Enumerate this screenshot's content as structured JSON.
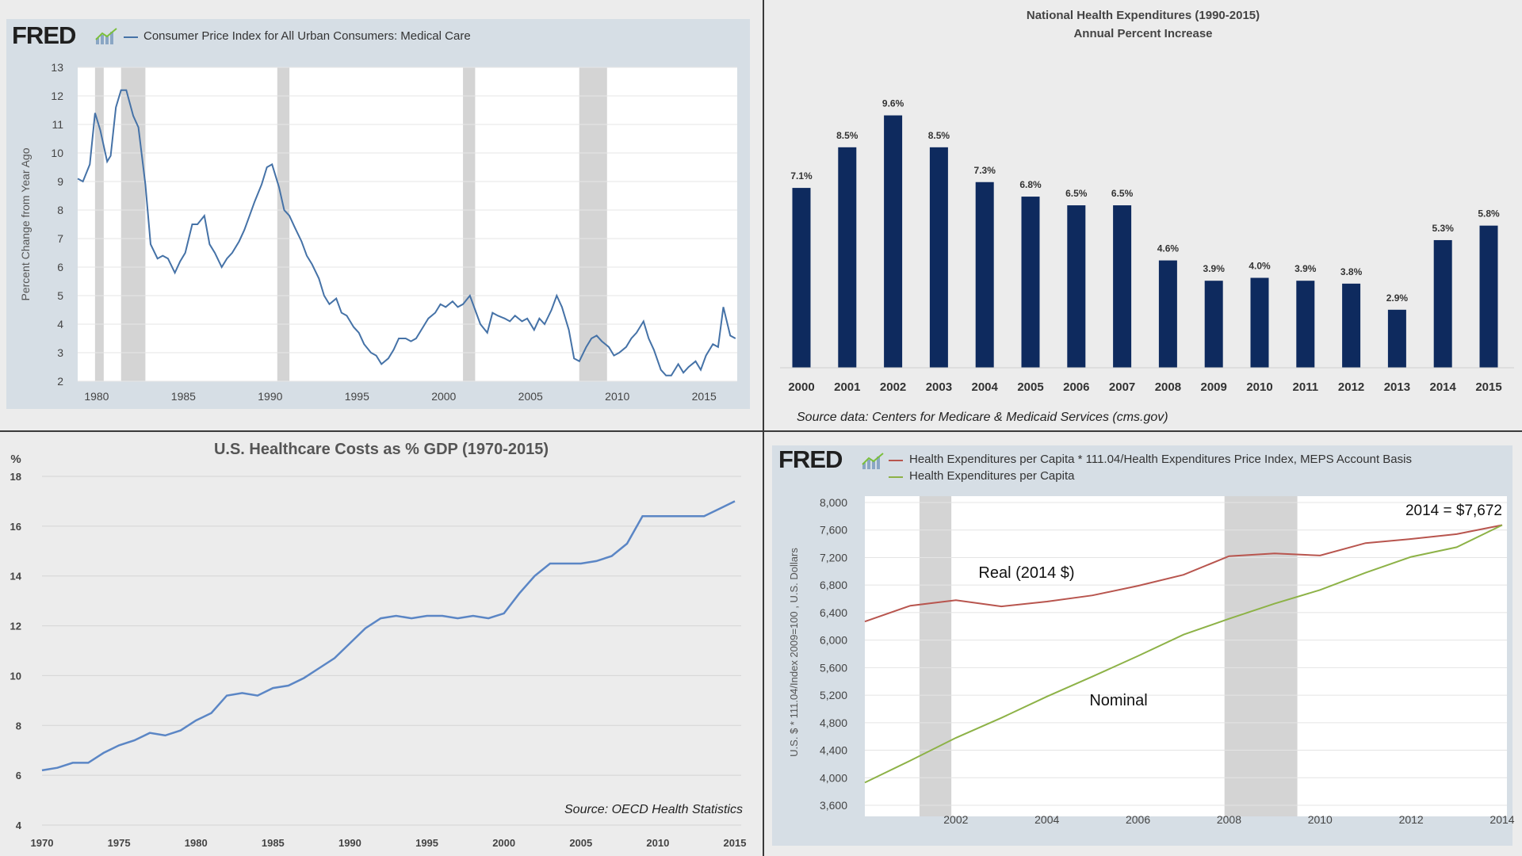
{
  "colors": {
    "fred_line": "#4572a7",
    "bar_navy": "#0e2a5e",
    "gdp_line": "#5b86c5",
    "real_line": "#b8554e",
    "nominal_line": "#8db247",
    "recession": "#d4d4d4"
  },
  "chart_data": [
    {
      "type": "line",
      "source_logo": "FRED",
      "series_name": "Consumer Price Index for All Urban Consumers: Medical Care",
      "ylabel": "Percent Change from Year Ago",
      "xlabel": "",
      "ylim": [
        2,
        13
      ],
      "xlim": [
        1979.0,
        2017.0
      ],
      "yticks": [
        "2",
        "3",
        "4",
        "5",
        "6",
        "7",
        "8",
        "9",
        "10",
        "11",
        "12",
        "13"
      ],
      "xticks": [
        "1980",
        "1985",
        "1990",
        "1995",
        "2000",
        "2005",
        "2010",
        "2015"
      ],
      "recessions": [
        [
          1980.0,
          1980.5
        ],
        [
          1981.5,
          1982.9
        ],
        [
          1990.5,
          1991.2
        ],
        [
          2001.2,
          2001.9
        ],
        [
          2007.9,
          2009.5
        ]
      ],
      "x": [
        1979.0,
        1979.3,
        1979.7,
        1980.0,
        1980.3,
        1980.7,
        1980.9,
        1981.2,
        1981.5,
        1981.8,
        1982.2,
        1982.5,
        1982.9,
        1983.2,
        1983.6,
        1983.9,
        1984.2,
        1984.6,
        1984.9,
        1985.2,
        1985.6,
        1985.9,
        1986.3,
        1986.6,
        1986.9,
        1987.3,
        1987.6,
        1987.9,
        1988.3,
        1988.6,
        1988.9,
        1989.2,
        1989.6,
        1989.9,
        1990.2,
        1990.6,
        1990.9,
        1991.2,
        1991.5,
        1991.9,
        1992.2,
        1992.5,
        1992.9,
        1993.2,
        1993.5,
        1993.9,
        1994.2,
        1994.5,
        1994.9,
        1995.2,
        1995.5,
        1995.9,
        1996.2,
        1996.5,
        1996.9,
        1997.2,
        1997.5,
        1997.9,
        1998.2,
        1998.5,
        1998.9,
        1999.2,
        1999.6,
        1999.9,
        2000.2,
        2000.6,
        2000.9,
        2001.2,
        2001.6,
        2001.9,
        2002.2,
        2002.6,
        2002.9,
        2003.2,
        2003.6,
        2003.9,
        2004.2,
        2004.6,
        2004.9,
        2005.3,
        2005.6,
        2005.9,
        2006.3,
        2006.6,
        2006.9,
        2007.3,
        2007.6,
        2007.9,
        2008.3,
        2008.6,
        2008.9,
        2009.2,
        2009.6,
        2009.9,
        2010.2,
        2010.6,
        2010.9,
        2011.2,
        2011.6,
        2011.9,
        2012.2,
        2012.6,
        2012.9,
        2013.2,
        2013.6,
        2013.9,
        2014.2,
        2014.6,
        2014.9,
        2015.2,
        2015.6,
        2015.9,
        2016.2,
        2016.6,
        2016.9
      ],
      "y": [
        9.1,
        9.0,
        9.6,
        11.4,
        10.8,
        9.7,
        9.9,
        11.6,
        12.2,
        12.2,
        11.3,
        10.9,
        8.9,
        6.8,
        6.3,
        6.4,
        6.3,
        5.8,
        6.2,
        6.5,
        7.5,
        7.5,
        7.8,
        6.8,
        6.5,
        6.0,
        6.3,
        6.5,
        6.9,
        7.3,
        7.8,
        8.3,
        8.9,
        9.5,
        9.6,
        8.8,
        8.0,
        7.8,
        7.4,
        6.9,
        6.4,
        6.1,
        5.6,
        5.0,
        4.7,
        4.9,
        4.4,
        4.3,
        3.9,
        3.7,
        3.3,
        3.0,
        2.9,
        2.6,
        2.8,
        3.1,
        3.5,
        3.5,
        3.4,
        3.5,
        3.9,
        4.2,
        4.4,
        4.7,
        4.6,
        4.8,
        4.6,
        4.7,
        5.0,
        4.5,
        4.0,
        3.7,
        4.4,
        4.3,
        4.2,
        4.1,
        4.3,
        4.1,
        4.2,
        3.8,
        4.2,
        4.0,
        4.5,
        5.0,
        4.6,
        3.8,
        2.8,
        2.7,
        3.2,
        3.5,
        3.6,
        3.4,
        3.2,
        2.9,
        3.0,
        3.2,
        3.5,
        3.7,
        4.1,
        3.5,
        3.1,
        2.4,
        2.2,
        2.2,
        2.6,
        2.3,
        2.5,
        2.7,
        2.4,
        2.9,
        3.3,
        3.2,
        4.6,
        3.6,
        3.5
      ]
    },
    {
      "type": "bar",
      "title": "National Health Expenditures (1990-2015)",
      "subtitle": "Annual Percent Increase",
      "categories": [
        "2000",
        "2001",
        "2002",
        "2003",
        "2004",
        "2005",
        "2006",
        "2007",
        "2008",
        "2009",
        "2010",
        "2011",
        "2012",
        "2013",
        "2014",
        "2015"
      ],
      "values": [
        7.1,
        8.5,
        9.6,
        8.5,
        7.3,
        6.8,
        6.5,
        6.5,
        4.6,
        3.9,
        4.0,
        3.9,
        3.8,
        2.9,
        5.3,
        5.8
      ],
      "labels": [
        "7.1%",
        "8.5%",
        "9.6%",
        "8.5%",
        "7.3%",
        "6.8%",
        "6.5%",
        "6.5%",
        "4.6%",
        "3.9%",
        "4.0%",
        "3.9%",
        "3.8%",
        "2.9%",
        "5.3%",
        "5.8%"
      ],
      "note": "Source data:  Centers for Medicare & Medicaid Services (cms.gov)"
    },
    {
      "type": "line",
      "title": "U.S. Healthcare Costs as % GDP (1970-2015)",
      "ylabel": "%",
      "ylim": [
        4,
        18
      ],
      "xlim": [
        1970,
        2015
      ],
      "yticks": [
        "4",
        "6",
        "8",
        "10",
        "12",
        "14",
        "16",
        "18"
      ],
      "xticks": [
        "1970",
        "1975",
        "1980",
        "1985",
        "1990",
        "1995",
        "2000",
        "2005",
        "2010",
        "2015"
      ],
      "x": [
        1970,
        1971,
        1972,
        1973,
        1974,
        1975,
        1976,
        1977,
        1978,
        1979,
        1980,
        1981,
        1982,
        1983,
        1984,
        1985,
        1986,
        1987,
        1988,
        1989,
        1990,
        1991,
        1992,
        1993,
        1994,
        1995,
        1996,
        1997,
        1998,
        1999,
        2000,
        2001,
        2002,
        2003,
        2004,
        2005,
        2006,
        2007,
        2008,
        2009,
        2010,
        2011,
        2012,
        2013,
        2014,
        2015
      ],
      "y": [
        6.2,
        6.3,
        6.5,
        6.5,
        6.9,
        7.2,
        7.4,
        7.7,
        7.6,
        7.8,
        8.2,
        8.5,
        9.2,
        9.3,
        9.2,
        9.5,
        9.6,
        9.9,
        10.3,
        10.7,
        11.3,
        11.9,
        12.3,
        12.4,
        12.3,
        12.4,
        12.4,
        12.3,
        12.4,
        12.3,
        12.5,
        13.3,
        14.0,
        14.5,
        14.5,
        14.5,
        14.6,
        14.8,
        15.3,
        16.4,
        16.4,
        16.4,
        16.4,
        16.4,
        16.7,
        17.0
      ],
      "note": "Source:  OECD Health Statistics"
    },
    {
      "type": "line",
      "source_logo": "FRED",
      "ylabel": "U.S. $ * 111.04/Index 2009=100 , U.S. Dollars",
      "ylim": [
        3600,
        8000
      ],
      "xlim": [
        2000,
        2014
      ],
      "yticks": [
        "3,600",
        "4,000",
        "4,400",
        "4,800",
        "5,200",
        "5,600",
        "6,000",
        "6,400",
        "6,800",
        "7,200",
        "7,600",
        "8,000"
      ],
      "xticks": [
        "2002",
        "2004",
        "2006",
        "2008",
        "2010",
        "2012",
        "2014"
      ],
      "recessions": [
        [
          2001.2,
          2001.9
        ],
        [
          2007.9,
          2009.5
        ]
      ],
      "series": [
        {
          "name": "Health Expenditures per Capita * 111.04/Health Expenditures Price Index, MEPS Account Basis",
          "x": [
            2000,
            2001,
            2002,
            2003,
            2004,
            2005,
            2006,
            2007,
            2008,
            2009,
            2010,
            2011,
            2012,
            2013,
            2014
          ],
          "values": [
            6270,
            6500,
            6580,
            6490,
            6560,
            6650,
            6790,
            6950,
            7220,
            7260,
            7230,
            7410,
            7470,
            7540,
            7672
          ]
        },
        {
          "name": "Health Expenditures per Capita",
          "x": [
            2000,
            2001,
            2002,
            2003,
            2004,
            2005,
            2006,
            2007,
            2008,
            2009,
            2010,
            2011,
            2012,
            2013,
            2014
          ],
          "values": [
            3930,
            4250,
            4580,
            4870,
            5180,
            5470,
            5770,
            6080,
            6310,
            6530,
            6730,
            6980,
            7210,
            7350,
            7672
          ]
        }
      ],
      "annotations": {
        "real": "Real (2014 $)",
        "nominal": "Nominal",
        "end": "2014 = $7,672"
      }
    }
  ]
}
